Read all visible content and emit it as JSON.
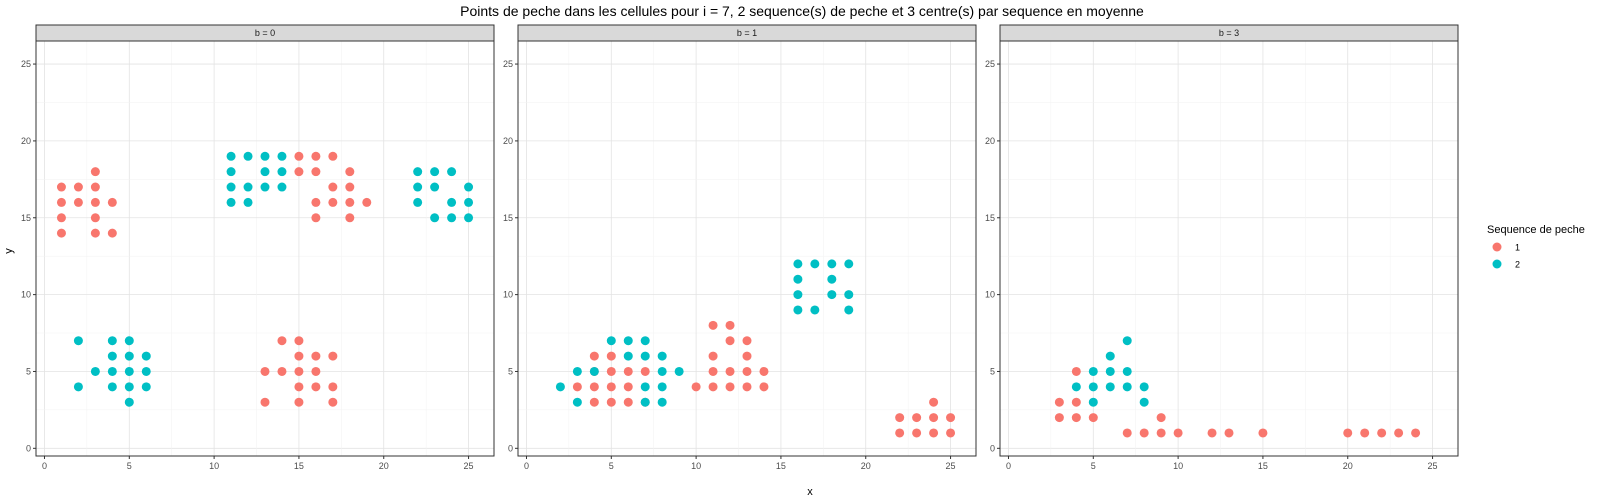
{
  "chart_data": {
    "type": "scatter",
    "title": "Points de peche dans les cellules pour i = 7, 2 sequence(s) de peche et 3 centre(s) par sequence en moyenne",
    "xlabel": "x",
    "ylabel": "y",
    "xlim": [
      -0.5,
      26.5
    ],
    "ylim": [
      -0.5,
      26.5
    ],
    "x_ticks": [
      0,
      5,
      10,
      15,
      20,
      25
    ],
    "y_ticks": [
      0,
      5,
      10,
      15,
      20,
      25
    ],
    "grid": true,
    "legend": {
      "title": "Sequence de peche",
      "placement": "right",
      "entries": [
        {
          "label": "1",
          "color": "#F8766D"
        },
        {
          "label": "2",
          "color": "#00BFC4"
        }
      ]
    },
    "facets": [
      {
        "label": "b = 0",
        "series": [
          {
            "name": "1",
            "points": [
              [
                1,
                17
              ],
              [
                1,
                16
              ],
              [
                1,
                15
              ],
              [
                1,
                14
              ],
              [
                2,
                17
              ],
              [
                2,
                16
              ],
              [
                3,
                18
              ],
              [
                3,
                17
              ],
              [
                3,
                16
              ],
              [
                3,
                15
              ],
              [
                3,
                14
              ],
              [
                4,
                16
              ],
              [
                4,
                14
              ],
              [
                15,
                19
              ],
              [
                15,
                18
              ],
              [
                16,
                19
              ],
              [
                16,
                18
              ],
              [
                16,
                16
              ],
              [
                16,
                15
              ],
              [
                17,
                19
              ],
              [
                17,
                17
              ],
              [
                17,
                16
              ],
              [
                18,
                18
              ],
              [
                18,
                17
              ],
              [
                18,
                16
              ],
              [
                18,
                15
              ],
              [
                19,
                16
              ],
              [
                13,
                5
              ],
              [
                13,
                3
              ],
              [
                14,
                7
              ],
              [
                14,
                5
              ],
              [
                15,
                7
              ],
              [
                15,
                6
              ],
              [
                15,
                5
              ],
              [
                15,
                4
              ],
              [
                15,
                3
              ],
              [
                16,
                6
              ],
              [
                16,
                5
              ],
              [
                16,
                4
              ],
              [
                17,
                6
              ],
              [
                17,
                4
              ],
              [
                17,
                3
              ]
            ]
          },
          {
            "name": "2",
            "points": [
              [
                11,
                19
              ],
              [
                11,
                18
              ],
              [
                11,
                17
              ],
              [
                11,
                16
              ],
              [
                12,
                19
              ],
              [
                12,
                17
              ],
              [
                12,
                16
              ],
              [
                13,
                19
              ],
              [
                13,
                18
              ],
              [
                13,
                17
              ],
              [
                14,
                19
              ],
              [
                14,
                18
              ],
              [
                14,
                17
              ],
              [
                22,
                18
              ],
              [
                22,
                17
              ],
              [
                22,
                16
              ],
              [
                23,
                18
              ],
              [
                23,
                17
              ],
              [
                23,
                15
              ],
              [
                24,
                18
              ],
              [
                24,
                16
              ],
              [
                24,
                15
              ],
              [
                25,
                17
              ],
              [
                25,
                16
              ],
              [
                25,
                15
              ],
              [
                2,
                7
              ],
              [
                2,
                4
              ],
              [
                3,
                5
              ],
              [
                4,
                7
              ],
              [
                4,
                6
              ],
              [
                4,
                5
              ],
              [
                4,
                4
              ],
              [
                5,
                7
              ],
              [
                5,
                6
              ],
              [
                5,
                5
              ],
              [
                5,
                4
              ],
              [
                5,
                3
              ],
              [
                6,
                6
              ],
              [
                6,
                5
              ],
              [
                6,
                4
              ]
            ]
          }
        ]
      },
      {
        "label": "b = 1",
        "series": [
          {
            "name": "1",
            "points": [
              [
                3,
                4
              ],
              [
                4,
                6
              ],
              [
                4,
                5
              ],
              [
                4,
                4
              ],
              [
                4,
                3
              ],
              [
                5,
                6
              ],
              [
                5,
                5
              ],
              [
                5,
                4
              ],
              [
                5,
                3
              ],
              [
                6,
                5
              ],
              [
                6,
                4
              ],
              [
                6,
                3
              ],
              [
                7,
                5
              ],
              [
                7,
                3
              ],
              [
                10,
                4
              ],
              [
                11,
                8
              ],
              [
                11,
                6
              ],
              [
                11,
                5
              ],
              [
                11,
                4
              ],
              [
                12,
                8
              ],
              [
                12,
                7
              ],
              [
                12,
                5
              ],
              [
                12,
                4
              ],
              [
                13,
                7
              ],
              [
                13,
                6
              ],
              [
                13,
                5
              ],
              [
                13,
                4
              ],
              [
                14,
                5
              ],
              [
                14,
                4
              ],
              [
                22,
                2
              ],
              [
                22,
                1
              ],
              [
                23,
                2
              ],
              [
                23,
                1
              ],
              [
                24,
                3
              ],
              [
                24,
                2
              ],
              [
                24,
                1
              ],
              [
                25,
                2
              ],
              [
                25,
                1
              ]
            ]
          },
          {
            "name": "2",
            "points": [
              [
                2,
                4
              ],
              [
                3,
                5
              ],
              [
                3,
                3
              ],
              [
                4,
                5
              ],
              [
                5,
                7
              ],
              [
                6,
                7
              ],
              [
                6,
                6
              ],
              [
                7,
                7
              ],
              [
                7,
                6
              ],
              [
                7,
                4
              ],
              [
                7,
                3
              ],
              [
                8,
                6
              ],
              [
                8,
                5
              ],
              [
                8,
                4
              ],
              [
                8,
                3
              ],
              [
                9,
                5
              ],
              [
                16,
                12
              ],
              [
                16,
                11
              ],
              [
                16,
                10
              ],
              [
                16,
                9
              ],
              [
                17,
                12
              ],
              [
                17,
                9
              ],
              [
                18,
                12
              ],
              [
                18,
                11
              ],
              [
                18,
                10
              ],
              [
                19,
                12
              ],
              [
                19,
                10
              ],
              [
                19,
                9
              ]
            ]
          }
        ]
      },
      {
        "label": "b = 3",
        "series": [
          {
            "name": "1",
            "points": [
              [
                3,
                3
              ],
              [
                3,
                2
              ],
              [
                4,
                5
              ],
              [
                4,
                3
              ],
              [
                4,
                2
              ],
              [
                5,
                2
              ],
              [
                7,
                1
              ],
              [
                8,
                1
              ],
              [
                9,
                2
              ],
              [
                9,
                1
              ],
              [
                10,
                1
              ],
              [
                12,
                1
              ],
              [
                13,
                1
              ],
              [
                15,
                1
              ],
              [
                20,
                1
              ],
              [
                21,
                1
              ],
              [
                22,
                1
              ],
              [
                23,
                1
              ],
              [
                24,
                1
              ]
            ]
          },
          {
            "name": "2",
            "points": [
              [
                4,
                4
              ],
              [
                5,
                5
              ],
              [
                5,
                4
              ],
              [
                5,
                3
              ],
              [
                6,
                6
              ],
              [
                6,
                5
              ],
              [
                6,
                4
              ],
              [
                7,
                7
              ],
              [
                7,
                5
              ],
              [
                7,
                4
              ],
              [
                8,
                4
              ],
              [
                8,
                3
              ]
            ]
          }
        ]
      }
    ]
  }
}
